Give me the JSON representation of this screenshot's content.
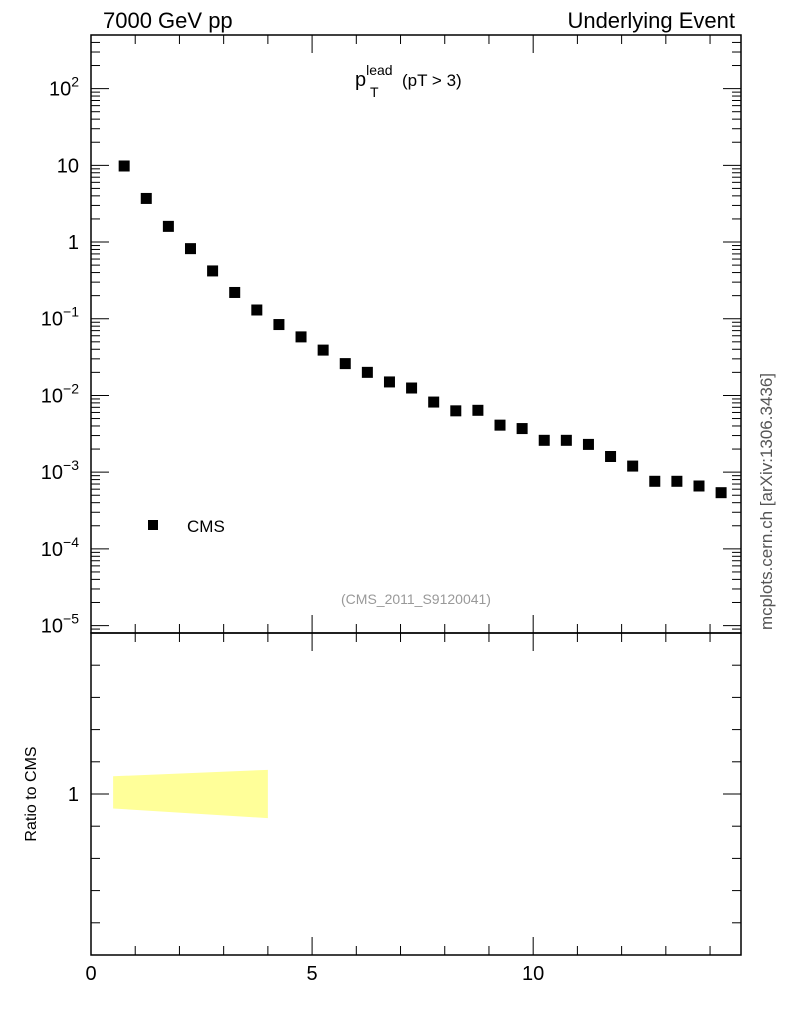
{
  "header": {
    "left": "7000 GeV pp",
    "right": "Underlying Event",
    "side_note": "mcplots.cern.ch [arXiv:1306.3436]"
  },
  "chart_data": [
    {
      "type": "scatter",
      "title_main": "p",
      "title_sup": "lead",
      "title_sub": "T",
      "title_rest": "(pT >  3)",
      "analysis_label": "(CMS_2011_S9120041)",
      "yscale": "log",
      "ylim": [
        8e-06,
        500
      ],
      "xlim": [
        0,
        14.7
      ],
      "y_tick_labels": [
        {
          "value": 100,
          "base": "10",
          "exp": "2"
        },
        {
          "value": 10,
          "base": "10",
          "exp": ""
        },
        {
          "value": 1,
          "base": "1",
          "exp": ""
        },
        {
          "value": 0.1,
          "base": "10",
          "exp": "−1"
        },
        {
          "value": 0.01,
          "base": "10",
          "exp": "−2"
        },
        {
          "value": 0.001,
          "base": "10",
          "exp": "−3"
        },
        {
          "value": 0.0001,
          "base": "10",
          "exp": "−4"
        },
        {
          "value": 1e-05,
          "base": "10",
          "exp": "−5"
        }
      ],
      "legend": {
        "label": "CMS",
        "position": "lower-left"
      },
      "series": [
        {
          "name": "CMS",
          "marker": "square",
          "color": "#000000",
          "x": [
            0.75,
            1.25,
            1.75,
            2.25,
            2.75,
            3.25,
            3.75,
            4.25,
            4.75,
            5.25,
            5.75,
            6.25,
            6.75,
            7.25,
            7.75,
            8.25,
            8.75,
            9.25,
            9.75,
            10.25,
            10.75,
            11.25,
            11.75,
            12.25,
            12.75,
            13.25,
            13.75,
            14.25
          ],
          "y": [
            9.8,
            3.7,
            1.6,
            0.82,
            0.42,
            0.22,
            0.13,
            0.084,
            0.058,
            0.039,
            0.026,
            0.02,
            0.015,
            0.0125,
            0.0082,
            0.0063,
            0.0064,
            0.0041,
            0.0037,
            0.0026,
            0.0026,
            0.0023,
            0.0016,
            0.0012,
            0.00076,
            0.00076,
            0.00066,
            0.00054
          ]
        }
      ]
    },
    {
      "type": "area",
      "ylabel": "Ratio to CMS",
      "xlim": [
        0,
        14.7
      ],
      "ylim": [
        0.5,
        1.5
      ],
      "y_tick_labels": [
        {
          "value": 1,
          "label": "1"
        }
      ],
      "x_tick_labels": [
        {
          "value": 0,
          "label": "0"
        },
        {
          "value": 5,
          "label": "5"
        },
        {
          "value": 10,
          "label": "10"
        }
      ],
      "band": {
        "color": "#ffff99",
        "x": [
          0.5,
          4.0
        ],
        "upper": [
          1.055,
          1.075
        ],
        "lower": [
          0.955,
          0.925
        ]
      }
    }
  ]
}
